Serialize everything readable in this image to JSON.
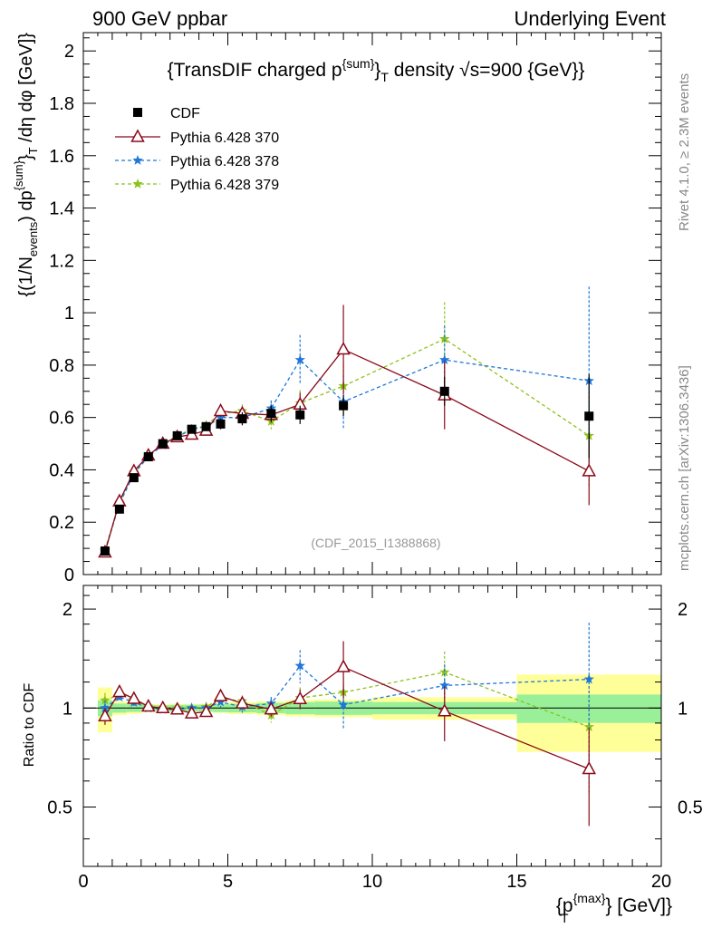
{
  "header": {
    "left": "900 GeV ppbar",
    "right": "Underlying Event"
  },
  "side_labels": {
    "rivet": "Rivet 4.1.0, ≥ 2.3M events",
    "mcplots": "mcplots.cern.ch [arXiv:1306.3436]"
  },
  "chart_data": {
    "type": "line",
    "title": "{TransDIF charged p^{sum}_T density √s=900 {GeV}}",
    "title_parts": {
      "main": "{TransDIF charged p",
      "sup": "{sum}",
      "close": "}",
      "sub": "T",
      "rest": " density √s=900 {GeV}}"
    },
    "watermark": "(CDF_2015_I1388868)",
    "xlabel": "{p_T^{max}} [GeV]}",
    "xlabel_parts": {
      "open": "{p",
      "sub": "T",
      "sup": "{max}",
      "close": "} [GeV]}"
    },
    "ylabel": "{(1/N_events) dp^{sum}_T /dη dφ [GeV]}",
    "ylabel_parts": {
      "a": "{(1/N",
      "sub1": "events",
      "b": ") dp",
      "sup": "{sum}",
      "c": "}",
      "sub2": "T",
      "d": " /dη  dφ [GeV]}"
    },
    "ratio_ylabel": "Ratio to CDF",
    "xlim": [
      0,
      20
    ],
    "ylim": [
      0,
      2.07
    ],
    "ratio_ylim": [
      0.33,
      2.36
    ],
    "x_ticks": [
      "0",
      "5",
      "10",
      "15",
      "20"
    ],
    "y_ticks": [
      "0",
      "0.2",
      "0.4",
      "0.6",
      "0.8",
      "1",
      "1.2",
      "1.4",
      "1.6",
      "1.8",
      "2"
    ],
    "ratio_ticks": [
      "0.5",
      "1",
      "2"
    ],
    "grid": false,
    "legend_position": "top-left",
    "x": [
      0.75,
      1.25,
      1.75,
      2.25,
      2.75,
      3.25,
      3.75,
      4.25,
      4.75,
      5.5,
      6.5,
      7.5,
      9.0,
      12.5,
      17.5
    ],
    "xerr": [
      0.25,
      0.25,
      0.25,
      0.25,
      0.25,
      0.25,
      0.25,
      0.25,
      0.25,
      0.5,
      0.5,
      0.5,
      1.0,
      2.5,
      2.5
    ],
    "series": [
      {
        "name": "CDF",
        "color": "#000000",
        "marker": "square",
        "style": "points",
        "values": [
          0.09,
          0.25,
          0.37,
          0.45,
          0.5,
          0.53,
          0.555,
          0.565,
          0.575,
          0.595,
          0.615,
          0.61,
          0.645,
          0.7,
          0.605
        ],
        "stat_err": [
          0.005,
          0.008,
          0.01,
          0.01,
          0.01,
          0.012,
          0.013,
          0.014,
          0.016,
          0.018,
          0.022,
          0.026,
          0.03,
          0.03,
          0.06
        ],
        "total_err": [
          0.014,
          0.012,
          0.015,
          0.012,
          0.014,
          0.016,
          0.016,
          0.016,
          0.02,
          0.025,
          0.03,
          0.035,
          0.04,
          0.055,
          0.16
        ]
      },
      {
        "name": "Pythia 6.428 370",
        "color": "#8b0a1a",
        "marker": "triangle-open",
        "style": "solid",
        "values": [
          0.085,
          0.28,
          0.395,
          0.455,
          0.5,
          0.525,
          0.535,
          0.55,
          0.625,
          0.615,
          0.61,
          0.65,
          0.86,
          0.685,
          0.395
        ],
        "errors": [
          0.005,
          0.008,
          0.01,
          0.012,
          0.012,
          0.013,
          0.015,
          0.017,
          0.022,
          0.025,
          0.03,
          0.045,
          0.17,
          0.13,
          0.13
        ]
      },
      {
        "name": "Pythia 6.428 378",
        "color": "#1f77d8",
        "marker": "star",
        "style": "dashed",
        "values": [
          0.09,
          0.27,
          0.385,
          0.45,
          0.495,
          0.525,
          0.555,
          0.565,
          0.6,
          0.6,
          0.635,
          0.82,
          0.66,
          0.82,
          0.74
        ],
        "errors": [
          0.005,
          0.008,
          0.01,
          0.012,
          0.012,
          0.013,
          0.015,
          0.017,
          0.022,
          0.025,
          0.03,
          0.095,
          0.1,
          0.13,
          0.36
        ]
      },
      {
        "name": "Pythia 6.428 379",
        "color": "#8cc21a",
        "marker": "star",
        "style": "dashed",
        "values": [
          0.095,
          0.275,
          0.39,
          0.455,
          0.5,
          0.53,
          0.555,
          0.57,
          0.615,
          0.625,
          0.585,
          0.655,
          0.72,
          0.9,
          0.53
        ],
        "errors": [
          0.005,
          0.008,
          0.01,
          0.012,
          0.012,
          0.013,
          0.015,
          0.017,
          0.022,
          0.025,
          0.03,
          0.05,
          0.08,
          0.14,
          0.2
        ]
      }
    ]
  }
}
